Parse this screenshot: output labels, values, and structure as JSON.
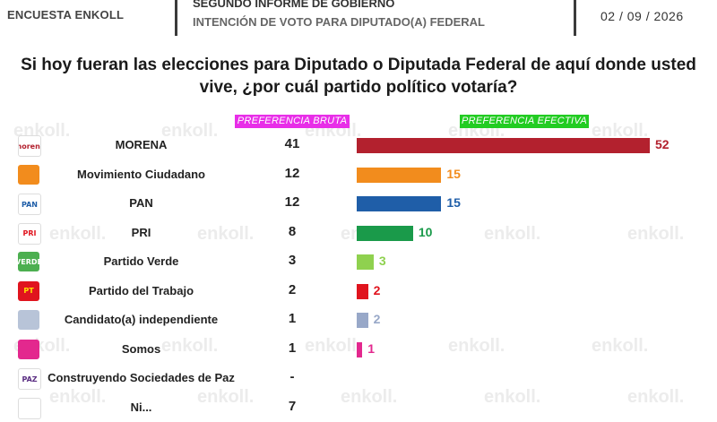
{
  "header": {
    "brand": "ENCUESTA ENKOLL",
    "title_line1": "SEGUNDO INFORME DE GOBIERNO",
    "title_line2": "INTENCIÓN DE VOTO PARA DIPUTADO(A) FEDERAL",
    "date": "02 / 09 / 2026"
  },
  "question": "Si hoy fueran las elecciones para Diputado o Diputada Federal de aquí donde usted vive, ¿por cuál partido político votaría?",
  "watermark": "enkoll.",
  "chart_data": {
    "type": "bar",
    "orientation": "horizontal",
    "column_headers": {
      "bruta": "PREFERENCIA BRUTA",
      "efectiva": "PREFERENCIA EFECTIVA"
    },
    "categories": [
      "MORENA",
      "Movimiento Ciudadano",
      "PAN",
      "PRI",
      "Partido Verde",
      "Partido del Trabajo",
      "Candidato(a) independiente",
      "Somos",
      "Construyendo Sociedades de Paz",
      "Ni..."
    ],
    "series": [
      {
        "name": "PREFERENCIA BRUTA",
        "values": [
          "41",
          "12",
          "12",
          "8",
          "3",
          "2",
          "1",
          "1",
          "-",
          "7"
        ]
      },
      {
        "name": "PREFERENCIA EFECTIVA",
        "values": [
          52,
          15,
          15,
          10,
          3,
          2,
          2,
          1,
          null,
          null
        ]
      }
    ],
    "bar_colors": [
      "#b3212e",
      "#f28c1d",
      "#1f5ea8",
      "#1a9a4a",
      "#8fd14f",
      "#e0141e",
      "#98a8c8",
      "#e3288e",
      null,
      null
    ],
    "label_colors": [
      "#b3212e",
      "#f28c1d",
      "#1f5ea8",
      "#1a9a4a",
      "#8fd14f",
      "#e0141e",
      "#98a8c8",
      "#e3288e",
      null,
      null
    ],
    "xlim": [
      0,
      52
    ]
  },
  "logos": [
    {
      "icon": "morena-logo-icon",
      "text": "morena",
      "bg": "#ffffff",
      "fg": "#b3212e"
    },
    {
      "icon": "movimiento-ciudadano-logo-icon",
      "text": "",
      "bg": "#f28c1d",
      "fg": "#ffffff"
    },
    {
      "icon": "pan-logo-icon",
      "text": "PAN",
      "bg": "#ffffff",
      "fg": "#1f5ea8"
    },
    {
      "icon": "pri-logo-icon",
      "text": "PRI",
      "bg": "#ffffff",
      "fg": "#e0141e"
    },
    {
      "icon": "partido-verde-logo-icon",
      "text": "VERDE",
      "bg": "#4caf50",
      "fg": "#ffffff"
    },
    {
      "icon": "partido-del-trabajo-logo-icon",
      "text": "PT",
      "bg": "#e0141e",
      "fg": "#ffe000"
    },
    {
      "icon": "candidato-independiente-icon",
      "text": "",
      "bg": "#b8c4d8",
      "fg": "#ffffff"
    },
    {
      "icon": "somos-logo-icon",
      "text": "",
      "bg": "#e3288e",
      "fg": "#ffffff"
    },
    {
      "icon": "paz-logo-icon",
      "text": "PAZ",
      "bg": "#ffffff",
      "fg": "#5a2d82"
    },
    {
      "icon": "ninguno-icon",
      "text": "",
      "bg": "#ffffff",
      "fg": "#222222"
    }
  ]
}
